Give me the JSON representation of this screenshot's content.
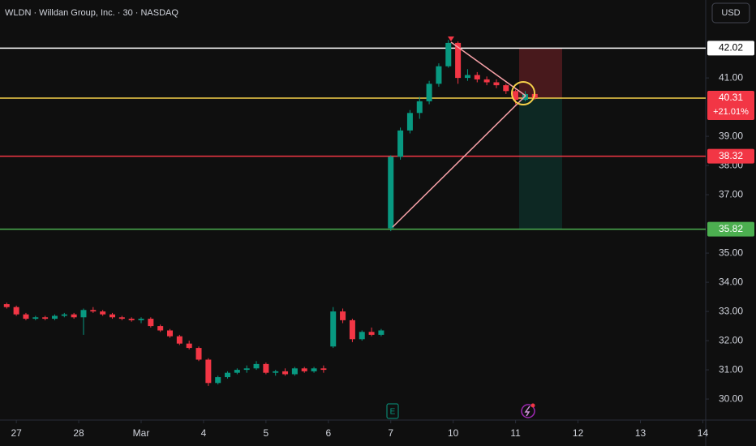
{
  "chart_data": {
    "type": "candlestick",
    "title": "WLDN · Willdan Group, Inc. · 30 · NASDAQ",
    "currency": "USD",
    "x": [
      -2,
      0,
      2,
      4,
      6,
      8,
      10,
      12,
      14,
      16,
      18,
      20,
      22,
      24,
      26,
      28,
      30,
      32,
      34,
      36,
      38,
      40,
      42,
      44,
      46,
      48,
      50,
      52,
      54,
      56,
      58,
      60,
      62,
      64,
      66,
      68,
      70,
      72,
      74,
      76,
      78,
      80,
      82,
      84,
      86,
      88,
      90,
      92,
      94,
      96,
      98,
      100,
      102,
      104,
      106,
      108
    ],
    "open": [
      33.25,
      33.15,
      32.9,
      32.75,
      32.8,
      32.75,
      32.85,
      32.9,
      32.8,
      33.05,
      33.0,
      32.9,
      32.8,
      32.75,
      32.7,
      32.75,
      32.5,
      32.35,
      32.15,
      31.9,
      31.75,
      31.35,
      30.55,
      30.75,
      30.9,
      31.0,
      31.05,
      31.2,
      30.9,
      30.95,
      30.85,
      31.05,
      30.95,
      31.05,
      31.8,
      33.0,
      32.7,
      32.05,
      32.3,
      32.2,
      35.85,
      38.3,
      39.2,
      39.8,
      40.2,
      40.8,
      41.4,
      42.2,
      41.0,
      41.1,
      40.95,
      40.85,
      40.75,
      40.55,
      40.25,
      40.45
    ],
    "high": [
      33.3,
      33.2,
      32.95,
      32.85,
      32.85,
      32.9,
      32.95,
      32.95,
      33.1,
      33.15,
      33.05,
      32.95,
      32.85,
      32.8,
      32.8,
      32.8,
      32.55,
      32.4,
      32.2,
      32.0,
      31.8,
      31.4,
      30.8,
      30.95,
      31.05,
      31.15,
      31.3,
      31.25,
      31.0,
      31.05,
      31.1,
      31.1,
      31.1,
      31.15,
      33.15,
      33.1,
      32.75,
      32.35,
      32.45,
      32.4,
      38.35,
      39.3,
      39.9,
      40.35,
      40.9,
      41.5,
      42.3,
      42.25,
      41.3,
      41.2,
      41.05,
      40.95,
      40.8,
      40.6,
      40.55,
      40.5
    ],
    "low": [
      33.1,
      32.85,
      32.7,
      32.7,
      32.7,
      32.7,
      32.8,
      32.75,
      32.2,
      32.95,
      32.85,
      32.75,
      32.7,
      32.65,
      32.6,
      32.45,
      32.3,
      32.1,
      31.85,
      31.7,
      31.3,
      30.45,
      30.5,
      30.7,
      30.85,
      30.9,
      31.0,
      30.85,
      30.8,
      30.8,
      30.8,
      30.9,
      30.9,
      30.9,
      31.75,
      32.6,
      31.95,
      32.0,
      32.15,
      32.15,
      35.75,
      38.2,
      39.1,
      39.6,
      40.1,
      40.7,
      41.35,
      40.8,
      40.9,
      40.85,
      40.75,
      40.65,
      40.45,
      40.1,
      40.2,
      40.25
    ],
    "close": [
      33.15,
      32.9,
      32.75,
      32.8,
      32.75,
      32.85,
      32.9,
      32.8,
      33.05,
      33.0,
      32.9,
      32.8,
      32.75,
      32.7,
      32.75,
      32.5,
      32.35,
      32.15,
      31.9,
      31.75,
      31.35,
      30.55,
      30.75,
      30.9,
      31.0,
      31.05,
      31.2,
      30.9,
      30.95,
      30.85,
      31.05,
      30.95,
      31.05,
      31.0,
      33.0,
      32.7,
      32.05,
      32.3,
      32.2,
      32.35,
      38.3,
      39.2,
      39.8,
      40.2,
      40.8,
      41.4,
      42.2,
      41.0,
      41.1,
      40.95,
      40.85,
      40.75,
      40.55,
      40.25,
      40.45,
      40.31
    ],
    "up_color": "#089981",
    "down_color": "#f23645",
    "xlim": [
      -3.4,
      143.6
    ],
    "xticks": [
      {
        "value": 0,
        "label": "27"
      },
      {
        "value": 13,
        "label": "28"
      },
      {
        "value": 26,
        "label": "Mar"
      },
      {
        "value": 39,
        "label": "4"
      },
      {
        "value": 52,
        "label": "5"
      },
      {
        "value": 65,
        "label": "6"
      },
      {
        "value": 78,
        "label": "7"
      },
      {
        "value": 91,
        "label": "10"
      },
      {
        "value": 104,
        "label": "11"
      },
      {
        "value": 117,
        "label": "12"
      },
      {
        "value": 130,
        "label": "13"
      },
      {
        "value": 143,
        "label": "14"
      }
    ],
    "ylim": [
      29.28,
      43.67
    ],
    "yticks": [
      {
        "value": 30,
        "label": "30.00"
      },
      {
        "value": 31,
        "label": "31.00"
      },
      {
        "value": 32,
        "label": "32.00"
      },
      {
        "value": 33,
        "label": "33.00"
      },
      {
        "value": 34,
        "label": "34.00"
      },
      {
        "value": 35,
        "label": "35.00"
      },
      {
        "value": 37,
        "label": "37.00"
      },
      {
        "value": 38,
        "label": "38.00"
      },
      {
        "value": 39,
        "label": "39.00"
      },
      {
        "value": 41,
        "label": "41.00"
      }
    ],
    "levels": [
      {
        "value": 42.02,
        "color": "#ffffff",
        "label_color": "#000000"
      },
      {
        "value": 40.31,
        "color": "#f5d04a",
        "label_color": "#ffffff",
        "label_bg": "#f23645"
      },
      {
        "value": 38.32,
        "color": "#f23645",
        "label_color": "#ffffff"
      },
      {
        "value": 35.82,
        "color": "#4caf50",
        "label_color": "#ffffff"
      }
    ],
    "change": "+21.01%",
    "earnings_marker": "E"
  }
}
